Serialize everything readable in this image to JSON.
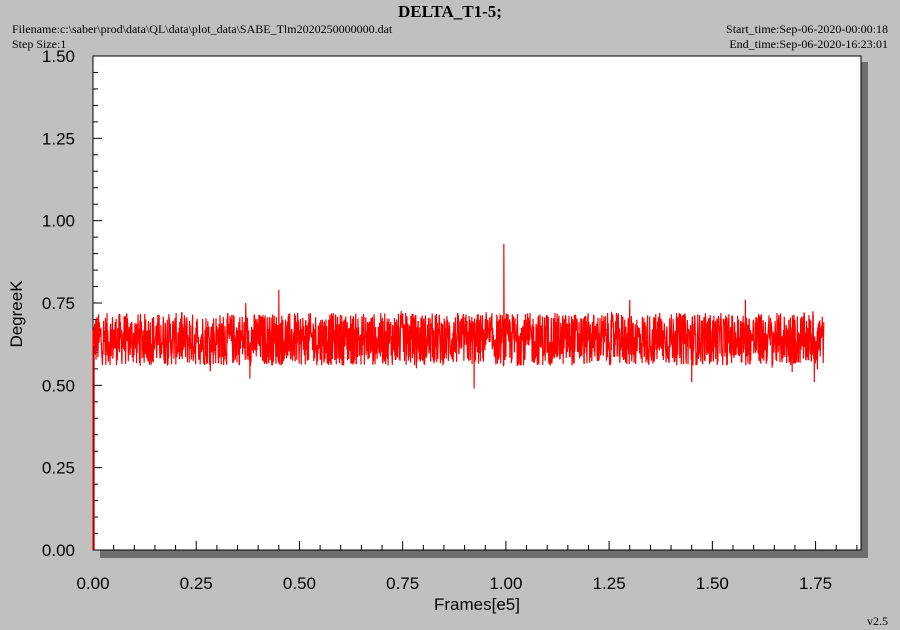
{
  "header": {
    "title": "DELTA_T1-5;",
    "filename": "Filename:c:\\saber\\prod\\data\\QL\\data\\plot_data\\SABE_Tlm2020250000000.dat",
    "step_size": "Step Size:1",
    "start_time": "Start_time:Sep-06-2020-00:00:18",
    "end_time": "End_time:Sep-06-2020-16:23:01",
    "version": "v2.5"
  },
  "colors": {
    "series": "#ff0000",
    "plot_bg": "#ffffff",
    "page_bg": "#c0c0c0",
    "shadow": "#6e6e6e"
  },
  "chart_data": {
    "type": "line",
    "title": "DELTA_T1-5;",
    "xlabel": "Frames[e5]",
    "ylabel": "DegreeK",
    "xlim": [
      0,
      1.86
    ],
    "ylim": [
      0,
      1.5
    ],
    "x_ticks": [
      "0.00",
      "0.25",
      "0.50",
      "0.75",
      "1.00",
      "1.25",
      "1.50",
      "1.75"
    ],
    "y_ticks": [
      "0.00",
      "0.25",
      "0.50",
      "0.75",
      "1.00",
      "1.25",
      "1.50"
    ],
    "grid": false,
    "legend": "none",
    "series": [
      {
        "band_x_range": [
          0.0,
          1.77
        ],
        "band_low": 0.56,
        "band_high": 0.72,
        "noise_min": 0.54,
        "noise_max": 0.73,
        "spikes": [
          {
            "x": 0.0,
            "y": 0.0
          },
          {
            "x": 0.37,
            "y": 0.75
          },
          {
            "x": 0.38,
            "y": 0.52
          },
          {
            "x": 0.45,
            "y": 0.79
          },
          {
            "x": 0.923,
            "y": 0.49
          },
          {
            "x": 0.995,
            "y": 0.93
          },
          {
            "x": 1.3,
            "y": 0.76
          },
          {
            "x": 1.45,
            "y": 0.51
          },
          {
            "x": 1.58,
            "y": 0.76
          },
          {
            "x": 1.747,
            "y": 0.51
          }
        ]
      }
    ]
  }
}
